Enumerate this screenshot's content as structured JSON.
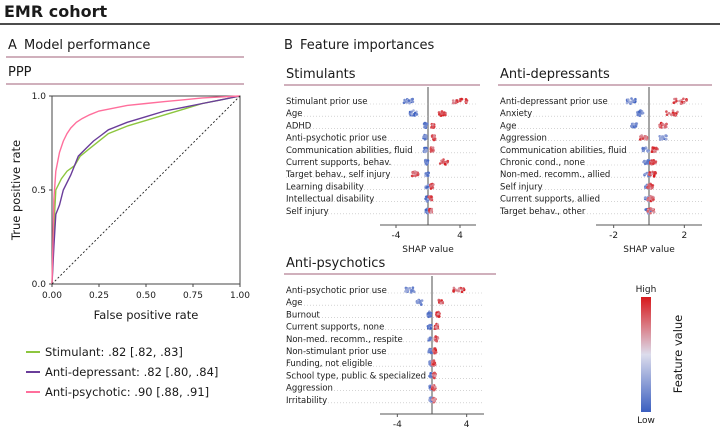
{
  "title": "EMR cohort",
  "panel_a": {
    "label": "A",
    "title": "Model performance",
    "subtitle": "PPP"
  },
  "panel_b": {
    "label": "B",
    "title": "Feature importances"
  },
  "colors": {
    "stimulant": "#8dc63f",
    "antidepressant": "#6a3d9a",
    "antipsychotic": "#ff6f9c",
    "low": "#3b5fc0",
    "high": "#d7191c",
    "mid": "#d9d9e8"
  },
  "chart_data": [
    {
      "type": "line",
      "title": "PPP",
      "xlabel": "False positive rate",
      "ylabel": "True positive rate",
      "xlim": [
        0,
        1
      ],
      "ylim": [
        0,
        1
      ],
      "xticks": [
        "0.00",
        "0.25",
        "0.50",
        "0.75",
        "1.00"
      ],
      "yticks": [
        "0.0",
        "0.5",
        "1.0"
      ],
      "series": [
        {
          "name": "Stimulant",
          "legend": "Stimulant: .82 [.82, .83]",
          "color": "#8dc63f",
          "x": [
            0,
            0.01,
            0.02,
            0.05,
            0.08,
            0.12,
            0.15,
            0.2,
            0.25,
            0.3,
            0.4,
            0.5,
            0.6,
            0.7,
            0.8,
            0.9,
            1.0
          ],
          "y": [
            0,
            0.3,
            0.5,
            0.56,
            0.6,
            0.63,
            0.68,
            0.72,
            0.76,
            0.8,
            0.84,
            0.87,
            0.9,
            0.93,
            0.96,
            0.98,
            1.0
          ]
        },
        {
          "name": "Anti-depressant",
          "legend": "Anti-depressant: .82 [.80, .84]",
          "color": "#6a3d9a",
          "x": [
            0,
            0.01,
            0.02,
            0.04,
            0.06,
            0.1,
            0.14,
            0.18,
            0.22,
            0.26,
            0.3,
            0.4,
            0.5,
            0.6,
            0.7,
            0.8,
            0.9,
            1.0
          ],
          "y": [
            0,
            0.2,
            0.37,
            0.42,
            0.5,
            0.58,
            0.68,
            0.72,
            0.76,
            0.79,
            0.82,
            0.86,
            0.89,
            0.92,
            0.94,
            0.96,
            0.98,
            1.0
          ]
        },
        {
          "name": "Anti-psychotic",
          "legend": "Anti-psychotic: .90 [.88, .91]",
          "color": "#ff6f9c",
          "x": [
            0,
            0.01,
            0.02,
            0.04,
            0.06,
            0.08,
            0.1,
            0.13,
            0.16,
            0.2,
            0.25,
            0.3,
            0.4,
            0.5,
            0.6,
            0.7,
            0.8,
            0.9,
            1.0
          ],
          "y": [
            0,
            0.45,
            0.6,
            0.7,
            0.76,
            0.8,
            0.83,
            0.86,
            0.88,
            0.9,
            0.92,
            0.93,
            0.95,
            0.96,
            0.97,
            0.98,
            0.99,
            0.995,
            1.0
          ]
        },
        {
          "name": "Chance",
          "legend": "",
          "color": "#222222",
          "x": [
            0,
            1
          ],
          "y": [
            0,
            1
          ]
        }
      ],
      "legend_position": "below"
    },
    {
      "type": "scatter",
      "subtype": "shap-beeswarm",
      "title": "Stimulants",
      "xlabel": "SHAP value",
      "xlim": [
        -6,
        6
      ],
      "xticks": [
        -4,
        4
      ],
      "features": [
        "Stimulant prior use",
        "Age",
        "ADHD",
        "Anti-psychotic prior use",
        "Communication abilities, fluid",
        "Current supports, behav.",
        "Target behav., self injury",
        "Learning disability",
        "Intellectual disability",
        "Self injury"
      ],
      "low_mean": [
        -2.4,
        -1.8,
        -0.3,
        -0.4,
        -0.3,
        -0.2,
        -0.1,
        -0.1,
        -0.1,
        -0.1
      ],
      "high_mean": [
        4.0,
        1.8,
        0.6,
        0.7,
        0.5,
        2.0,
        -1.6,
        0.5,
        0.3,
        0.3
      ]
    },
    {
      "type": "scatter",
      "subtype": "shap-beeswarm",
      "title": "Anti-depressants",
      "xlabel": "SHAP value",
      "xlim": [
        -3,
        3
      ],
      "xticks": [
        -2,
        2
      ],
      "features": [
        "Anti-depressant prior use",
        "Anxiety",
        "Age",
        "Aggression",
        "Communication abilities, fluid",
        "Chronic cond., none",
        "Non-med. recomm., allied",
        "Self injury",
        "Current supports, allied",
        "Target behav., other"
      ],
      "low_mean": [
        -1.0,
        -0.5,
        -0.9,
        0.8,
        -0.2,
        -0.1,
        -0.1,
        -0.05,
        -0.05,
        -0.05
      ],
      "high_mean": [
        1.8,
        1.3,
        0.8,
        -0.3,
        0.3,
        0.2,
        0.2,
        0.1,
        0.1,
        0.1
      ]
    },
    {
      "type": "scatter",
      "subtype": "shap-beeswarm",
      "title": "Anti-psychotics",
      "xlabel": "SHAP value",
      "xlim": [
        -6,
        6
      ],
      "xticks": [
        -4,
        4
      ],
      "features": [
        "Anti-psychotic prior use",
        "Age",
        "Burnout",
        "Current supports, none",
        "Non-med. recomm., respite",
        "Non-stimulant prior use",
        "Funding, not eligible",
        "School type, public & specialized",
        "Aggression",
        "Irritability"
      ],
      "low_mean": [
        -2.5,
        -1.4,
        -0.3,
        -0.3,
        -0.2,
        -0.2,
        -0.1,
        -0.1,
        -0.1,
        -0.1
      ],
      "high_mean": [
        3.0,
        1.0,
        0.7,
        0.5,
        0.5,
        0.3,
        0.2,
        0.3,
        0.2,
        0.2
      ]
    },
    {
      "type": "heatmap",
      "subtype": "colorbar",
      "title": "Feature value",
      "high_label": "High",
      "low_label": "Low"
    }
  ]
}
